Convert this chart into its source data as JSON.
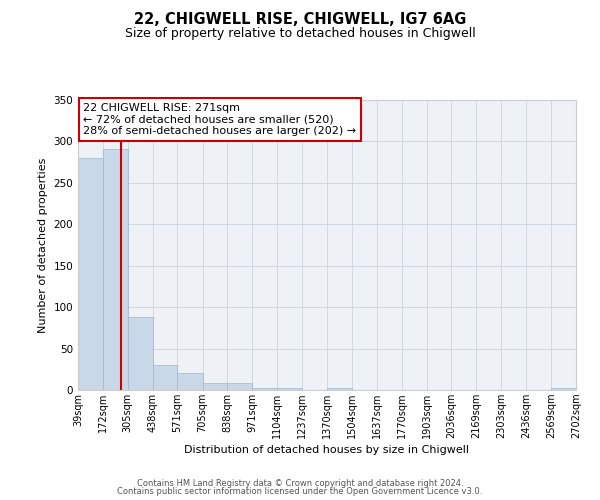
{
  "title": "22, CHIGWELL RISE, CHIGWELL, IG7 6AG",
  "subtitle": "Size of property relative to detached houses in Chigwell",
  "xlabel": "Distribution of detached houses by size in Chigwell",
  "ylabel": "Number of detached properties",
  "bar_edges": [
    39,
    172,
    305,
    438,
    571,
    705,
    838,
    971,
    1104,
    1237,
    1370,
    1504,
    1637,
    1770,
    1903,
    2036,
    2169,
    2303,
    2436,
    2569,
    2702
  ],
  "bar_heights": [
    280,
    291,
    88,
    30,
    20,
    8,
    9,
    3,
    3,
    0,
    3,
    0,
    0,
    0,
    0,
    0,
    0,
    0,
    0,
    2
  ],
  "bar_color": "#c8d8e8",
  "bar_edgecolor": "#a0b8cc",
  "vline_x": 271,
  "vline_color": "#cc0000",
  "annotation_line1": "22 CHIGWELL RISE: 271sqm",
  "annotation_line2": "← 72% of detached houses are smaller (520)",
  "annotation_line3": "28% of semi-detached houses are larger (202) →",
  "annotation_box_color": "#ffffff",
  "annotation_box_edge": "#cc0000",
  "ylim": [
    0,
    350
  ],
  "yticks": [
    0,
    50,
    100,
    150,
    200,
    250,
    300,
    350
  ],
  "tick_labels": [
    "39sqm",
    "172sqm",
    "305sqm",
    "438sqm",
    "571sqm",
    "705sqm",
    "838sqm",
    "971sqm",
    "1104sqm",
    "1237sqm",
    "1370sqm",
    "1504sqm",
    "1637sqm",
    "1770sqm",
    "1903sqm",
    "2036sqm",
    "2169sqm",
    "2303sqm",
    "2436sqm",
    "2569sqm",
    "2702sqm"
  ],
  "grid_color": "#d0d8e0",
  "bg_color": "#eef2f7",
  "footer_line1": "Contains HM Land Registry data © Crown copyright and database right 2024.",
  "footer_line2": "Contains public sector information licensed under the Open Government Licence v3.0."
}
